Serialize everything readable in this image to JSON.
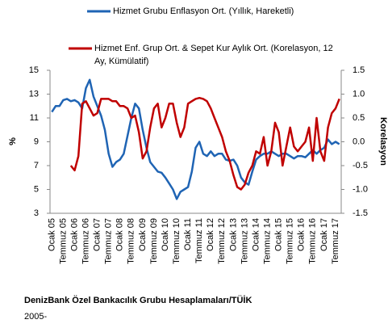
{
  "chart_data": {
    "type": "line",
    "categories": [
      "Ocak 05",
      null,
      null,
      "Temmuz 05",
      null,
      null,
      "Ocak 06",
      null,
      null,
      "Temmuz 06",
      null,
      null,
      "Ocak 07",
      null,
      null,
      "Temmuz 07",
      null,
      null,
      "Ocak 08",
      null,
      null,
      "Temmuz 08",
      null,
      null,
      "Ocak 09",
      null,
      null,
      "Temmuz 09",
      null,
      null,
      "Ocak 10",
      null,
      null,
      "Temmuz 10",
      null,
      null,
      "Ocak 11",
      null,
      null,
      "Temmuz 11",
      null,
      null,
      "Ocak 12",
      null,
      null,
      "Temmuz 12",
      null,
      null,
      "Ocak 13",
      null,
      null,
      "Temmuz 13",
      null,
      null,
      "Ocak 14",
      null,
      null,
      "Temmuz 14",
      null,
      null,
      "Ocak 15",
      null,
      null,
      "Temmuz 15",
      null,
      null,
      "Ocak 16",
      null,
      null,
      "Temmuz 16",
      null,
      null,
      "Ocak 17",
      null,
      null,
      "Temmuz 17",
      null
    ],
    "series": [
      {
        "name": "Hizmet Grubu Enflasyon Ort. (Yıllık, Hareketli)",
        "color": "#1f64b4",
        "values": [
          11.5,
          12,
          12,
          12.5,
          12.6,
          12.4,
          12.5,
          12.3,
          11.8,
          13.5,
          14.2,
          12.8,
          12,
          11.2,
          10,
          8,
          6.9,
          7.3,
          7.5,
          8,
          9.5,
          11,
          12.2,
          11.8,
          10,
          8.5,
          7.3,
          6.9,
          6.5,
          6.4,
          6,
          5.5,
          5,
          4.2,
          4.8,
          5,
          5.2,
          6.5,
          8.5,
          9,
          8,
          7.8,
          8.2,
          7.8,
          8,
          8,
          7.5,
          7.4,
          7.5,
          7,
          6,
          5.6,
          5.4,
          6.5,
          7.5,
          7.8,
          8,
          8,
          8.2,
          8,
          7.8,
          8,
          8,
          7.8,
          7.6,
          7.8,
          7.8,
          7.7,
          8,
          8.3,
          8,
          8.3,
          8.5,
          9.2,
          8.8,
          9,
          8.8
        ]
      },
      {
        "name": "Hizmet Enf. Grup Ort. & Sepet Kur Aylık Ort. (Korelasyon, 12 Ay, Kümülatif)",
        "color": "#c00000",
        "axis": "y2",
        "values": [
          null,
          null,
          null,
          null,
          null,
          -0.5,
          -0.6,
          -0.3,
          0.8,
          0.85,
          0.7,
          0.55,
          0.6,
          0.9,
          0.9,
          0.9,
          0.85,
          0.85,
          0.75,
          0.75,
          0.7,
          0.5,
          0.55,
          0.2,
          -0.35,
          -0.2,
          0.3,
          0.7,
          0.8,
          0.3,
          0.5,
          0.8,
          0.8,
          0.4,
          0.1,
          0.3,
          0.8,
          0.85,
          0.9,
          0.92,
          0.9,
          0.85,
          0.7,
          0.5,
          0.3,
          0.1,
          -0.2,
          -0.4,
          -0.7,
          -0.95,
          -1.0,
          -0.9,
          -0.65,
          -0.5,
          -0.2,
          -0.25,
          0.1,
          -0.5,
          -0.2,
          0.4,
          0.2,
          -0.5,
          -0.1,
          0.3,
          -0.1,
          -0.2,
          -0.1,
          0,
          0.3,
          -0.4,
          0.5,
          -0.2,
          -0.4,
          0.3,
          0.6,
          0.7,
          0.9
        ]
      }
    ],
    "ylabel": "%",
    "y2label": "Korelasyon",
    "ylim": [
      3,
      15
    ],
    "yticks": [
      3,
      5,
      7,
      9,
      11,
      13,
      15
    ],
    "y2lim": [
      -1.5,
      1.5
    ],
    "y2ticks": [
      {
        "value": -1.5,
        "label": "-1.5"
      },
      {
        "value": -1,
        "label": "-1.0"
      },
      -0.5,
      {
        "value": 0,
        "label": "0.0"
      },
      0.5,
      {
        "value": 1,
        "label": "1.0"
      },
      1.5
    ],
    "source": "DenizBank Özel Bankacılık  Grubu Hesaplamaları/TÜİK",
    "note": "2005-"
  }
}
